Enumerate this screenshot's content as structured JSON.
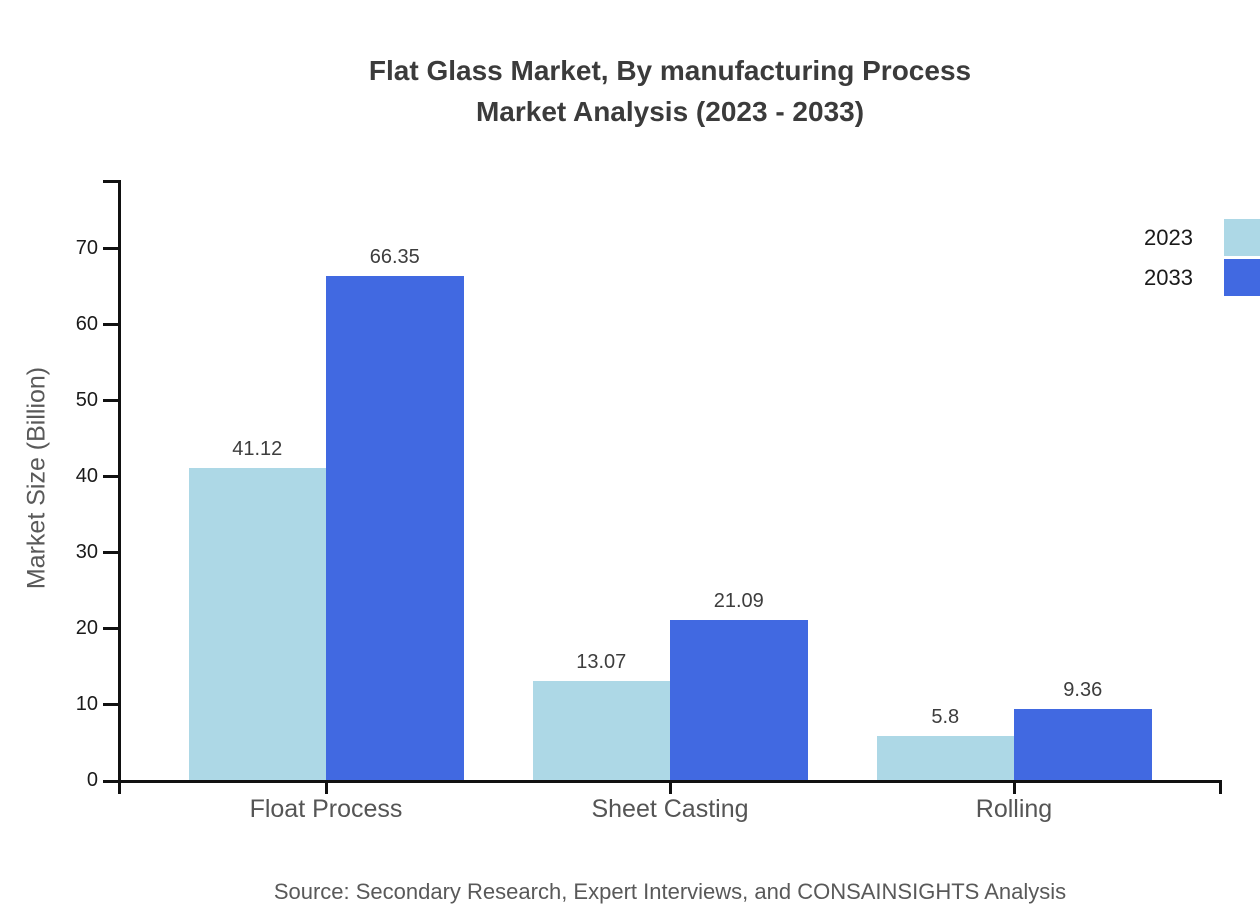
{
  "title": {
    "line1": "Flat Glass Market, By manufacturing Process",
    "line2": "Market Analysis (2023 - 2033)"
  },
  "source": "Source: Secondary Research, Expert Interviews, and CONSAINSIGHTS Analysis",
  "chart_data": {
    "type": "bar",
    "title": "Flat Glass Market, By manufacturing Process Market Analysis (2023 - 2033)",
    "categories": [
      "Float Process",
      "Sheet Casting",
      "Rolling"
    ],
    "series": [
      {
        "name": "2023",
        "color": "#ADD8E6",
        "values": [
          41.12,
          13.07,
          5.8
        ],
        "labels": [
          "41.12",
          "13.07",
          "5.8"
        ]
      },
      {
        "name": "2033",
        "color": "#4169E1",
        "values": [
          66.35,
          21.09,
          9.36
        ],
        "labels": [
          "66.35",
          "21.09",
          "9.36"
        ]
      }
    ],
    "xlabel": "",
    "ylabel": "Market Size (Billion)",
    "yticks": [
      0,
      10,
      20,
      30,
      40,
      50,
      60,
      70
    ],
    "ylim": [
      0,
      79
    ],
    "grid": false,
    "legend_position": "top-right"
  },
  "colors": {
    "series_2023": "#ADD8E6",
    "series_2033": "#4169E1",
    "axis": "#111111",
    "tick_label": "#1a1a1a",
    "value_label": "#3d3d3d",
    "category_label": "#555555",
    "title_text": "#3b3b3b",
    "muted_text": "#595959",
    "background": "#ffffff"
  }
}
